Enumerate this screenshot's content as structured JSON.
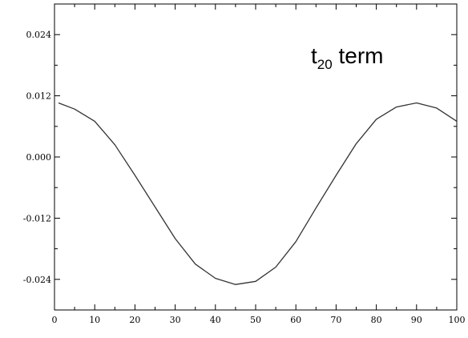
{
  "chart_data": {
    "type": "line",
    "title": "",
    "xlabel": "",
    "ylabel": "",
    "xlim": [
      0,
      100
    ],
    "ylim": [
      -0.03,
      0.03
    ],
    "grid": false,
    "x_ticks": [
      0,
      10,
      20,
      30,
      40,
      50,
      60,
      70,
      80,
      90,
      100
    ],
    "x_tick_labels": [
      "0",
      "10",
      "20",
      "30",
      "40",
      "50",
      "60",
      "70",
      "80",
      "90",
      "100"
    ],
    "y_ticks": [
      -0.024,
      -0.012,
      0.0,
      0.012,
      0.024
    ],
    "y_tick_labels": [
      "-0.024",
      "-0.012",
      "0.000",
      "0.012",
      "0.024"
    ],
    "annotation": {
      "base": "t",
      "subscript": "20",
      "suffix": " term"
    },
    "series": [
      {
        "color": "#333333",
        "x": [
          1,
          5,
          10,
          15,
          20,
          25,
          30,
          35,
          40,
          45,
          50,
          55,
          60,
          65,
          70,
          75,
          80,
          85,
          90,
          95,
          100
        ],
        "y": [
          0.0106,
          0.0094,
          0.007,
          0.0024,
          -0.0036,
          -0.0098,
          -0.016,
          -0.021,
          -0.0238,
          -0.025,
          -0.0244,
          -0.0216,
          -0.0166,
          -0.01,
          -0.0036,
          0.0026,
          0.0074,
          0.0098,
          0.0106,
          0.0096,
          0.007
        ]
      }
    ]
  }
}
